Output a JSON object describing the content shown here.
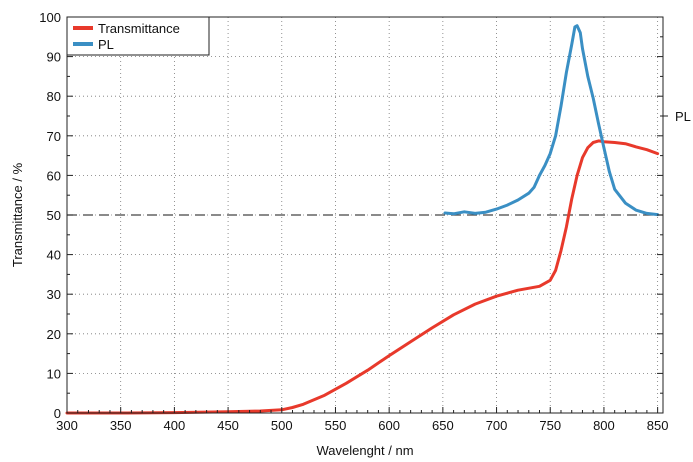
{
  "chart_data": {
    "type": "line",
    "title": "",
    "xlabel": "Wavelenght / nm",
    "ylabel": "Transmittance / %",
    "right_axis_label": "PL",
    "xlim": [
      300,
      855
    ],
    "ylim": [
      0,
      100
    ],
    "x_ticks": [
      300,
      350,
      400,
      450,
      500,
      550,
      600,
      650,
      700,
      750,
      800,
      850
    ],
    "y_ticks": [
      0,
      10,
      20,
      30,
      40,
      50,
      60,
      70,
      80,
      90,
      100
    ],
    "grid": true,
    "legend_position": "top-left",
    "reference_line": {
      "y": 50,
      "style": "dashed"
    },
    "series": [
      {
        "name": "Transmittance",
        "color": "#e8392b",
        "x": [
          300,
          350,
          400,
          450,
          480,
          500,
          510,
          520,
          540,
          560,
          580,
          600,
          620,
          640,
          660,
          680,
          700,
          720,
          740,
          750,
          755,
          760,
          765,
          770,
          775,
          780,
          785,
          790,
          795,
          800,
          810,
          820,
          830,
          840,
          850
        ],
        "y": [
          0,
          0,
          0.1,
          0.3,
          0.5,
          0.8,
          1.4,
          2.2,
          4.5,
          7.5,
          10.8,
          14.5,
          18.0,
          21.5,
          24.8,
          27.5,
          29.5,
          31.0,
          32.0,
          33.5,
          36,
          41,
          47,
          54,
          60,
          64.5,
          67.0,
          68.3,
          68.7,
          68.5,
          68.3,
          68.0,
          67.2,
          66.5,
          65.5
        ]
      },
      {
        "name": "PL",
        "color": "#3a8fc4",
        "x": [
          652,
          660,
          670,
          680,
          690,
          700,
          710,
          720,
          730,
          735,
          740,
          745,
          750,
          755,
          760,
          765,
          770,
          773,
          775,
          778,
          780,
          785,
          790,
          795,
          800,
          805,
          810,
          820,
          830,
          840,
          850
        ],
        "y": [
          50.5,
          50.3,
          50.8,
          50.4,
          50.7,
          51.5,
          52.5,
          53.8,
          55.5,
          57.0,
          60.0,
          62.5,
          65.5,
          70.0,
          77.5,
          86.0,
          93.0,
          97.5,
          97.8,
          96.0,
          92.0,
          85.0,
          79.5,
          73.0,
          67.0,
          61.0,
          56.5,
          53.0,
          51.2,
          50.4,
          50.1
        ]
      }
    ]
  }
}
